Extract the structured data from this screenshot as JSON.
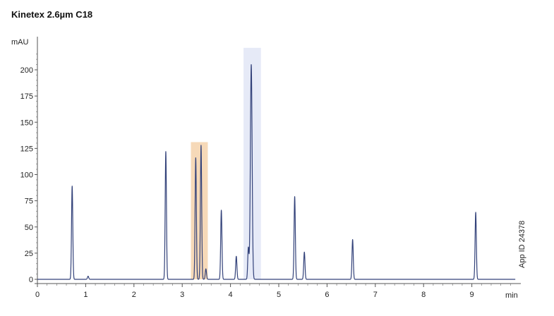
{
  "chart_data": {
    "type": "line",
    "title": "Kinetex 2.6µm C18",
    "ylabel": "mAU",
    "xlabel": "min",
    "ylim": [
      0,
      220
    ],
    "xlim": [
      0,
      9.9
    ],
    "x_ticks": [
      0,
      1,
      2,
      3,
      4,
      5,
      6,
      7,
      8,
      9
    ],
    "y_ticks": [
      0,
      25,
      50,
      75,
      100,
      125,
      150,
      175,
      200
    ],
    "grid": false,
    "side_note": "App ID 24378",
    "line_color": "#33427a",
    "highlights": [
      {
        "x_from": 3.18,
        "x_to": 3.53,
        "y_from": 0,
        "y_to": 131,
        "color": "#f6d9b8"
      },
      {
        "x_from": 4.27,
        "x_to": 4.63,
        "y_from": 0,
        "y_to": 221,
        "color": "#e6eaf7"
      }
    ],
    "baseline": 0,
    "peaks": [
      {
        "x": 0.72,
        "height": 89
      },
      {
        "x": 1.05,
        "height": 3
      },
      {
        "x": 2.66,
        "height": 122
      },
      {
        "x": 3.28,
        "height": 116
      },
      {
        "x": 3.39,
        "height": 128
      },
      {
        "x": 3.49,
        "height": 10
      },
      {
        "x": 3.81,
        "height": 66
      },
      {
        "x": 4.12,
        "height": 22
      },
      {
        "x": 4.37,
        "height": 30
      },
      {
        "x": 4.43,
        "height": 205
      },
      {
        "x": 5.33,
        "height": 79
      },
      {
        "x": 5.53,
        "height": 26
      },
      {
        "x": 6.53,
        "height": 38
      },
      {
        "x": 9.08,
        "height": 64
      }
    ]
  }
}
